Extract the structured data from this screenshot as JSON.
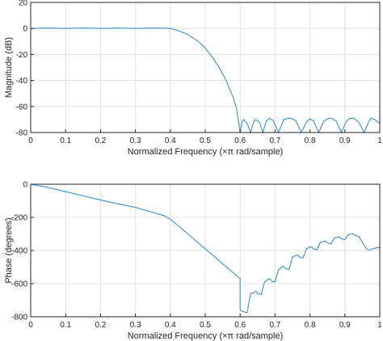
{
  "chart_data": [
    {
      "type": "line",
      "xlabel": "Normalized Frequency  (×π rad/sample)",
      "ylabel": "Magnitude (dB)",
      "xlim": [
        0,
        1
      ],
      "ylim": [
        -80,
        20
      ],
      "xticks": [
        0,
        0.1,
        0.2,
        0.3,
        0.4,
        0.5,
        0.6,
        0.7,
        0.8,
        0.9,
        1
      ],
      "xtick_labels": [
        "0",
        "0.1",
        "0.2",
        "0.3",
        "0.4",
        "0.5",
        "0.6",
        "0.7",
        "0.8",
        "0.9",
        "1"
      ],
      "yticks": [
        20,
        0,
        -20,
        -40,
        -60,
        -80
      ],
      "ytick_labels": [
        "20",
        "0",
        "-20",
        "-40",
        "-60",
        "-80"
      ],
      "grid": true,
      "series": [
        {
          "color": "#3a8fd0",
          "x": [
            0,
            0.05,
            0.1,
            0.15,
            0.2,
            0.25,
            0.3,
            0.35,
            0.38,
            0.4,
            0.42,
            0.45,
            0.48,
            0.5,
            0.52,
            0.54,
            0.56,
            0.58,
            0.59,
            0.6,
            0.605,
            0.61,
            0.62,
            0.63,
            0.64,
            0.645,
            0.655,
            0.665,
            0.675,
            0.685,
            0.695,
            0.71,
            0.725,
            0.74,
            0.745,
            0.76,
            0.775,
            0.79,
            0.8,
            0.81,
            0.825,
            0.84,
            0.855,
            0.86,
            0.875,
            0.89,
            0.905,
            0.915,
            0.925,
            0.94,
            0.955,
            0.97,
            0.975,
            0.985,
            1.0
          ],
          "y": [
            0,
            0.3,
            0,
            0.3,
            0,
            0.3,
            0,
            0.3,
            0.2,
            0,
            -1.5,
            -4.5,
            -10,
            -15,
            -22,
            -30,
            -40,
            -53,
            -62,
            -80,
            -72,
            -70,
            -73,
            -80,
            -71,
            -70,
            -72,
            -80,
            -71,
            -69,
            -71,
            -80,
            -70,
            -69,
            -69,
            -71,
            -80,
            -72,
            -69.5,
            -71,
            -80,
            -71,
            -69,
            -69,
            -71,
            -80,
            -71,
            -69,
            -69,
            -72,
            -80,
            -71,
            -69,
            -70,
            -73
          ]
        }
      ]
    },
    {
      "type": "line",
      "xlabel": "Normalized Frequency  (×π rad/sample)",
      "ylabel": "Phase (degrees)",
      "xlim": [
        0,
        1
      ],
      "ylim": [
        -800,
        0
      ],
      "xticks": [
        0,
        0.1,
        0.2,
        0.3,
        0.4,
        0.5,
        0.6,
        0.7,
        0.8,
        0.9,
        1
      ],
      "xtick_labels": [
        "0",
        "0.1",
        "0.2",
        "0.3",
        "0.4",
        "0.5",
        "0.6",
        "0.7",
        "0.8",
        "0.9",
        "1"
      ],
      "yticks": [
        0,
        -200,
        -400,
        -600,
        -800
      ],
      "ytick_labels": [
        "0",
        "-200",
        "-400",
        "-600",
        "-800"
      ],
      "grid": true,
      "series": [
        {
          "color": "#3a8fd0",
          "x": [
            0,
            0.05,
            0.1,
            0.15,
            0.2,
            0.25,
            0.3,
            0.35,
            0.38,
            0.4,
            0.45,
            0.5,
            0.55,
            0.6,
            0.6,
            0.61,
            0.62,
            0.63,
            0.64,
            0.645,
            0.65,
            0.66,
            0.67,
            0.68,
            0.685,
            0.69,
            0.7,
            0.71,
            0.72,
            0.725,
            0.73,
            0.74,
            0.75,
            0.76,
            0.765,
            0.77,
            0.78,
            0.79,
            0.8,
            0.805,
            0.81,
            0.82,
            0.83,
            0.84,
            0.845,
            0.85,
            0.86,
            0.87,
            0.88,
            0.885,
            0.89,
            0.9,
            0.91,
            0.92,
            0.925,
            0.93,
            0.94,
            0.95,
            0.96,
            0.965,
            0.97,
            0.98,
            0.99,
            1.0
          ],
          "y": [
            0,
            -20,
            -45,
            -70,
            -95,
            -118,
            -140,
            -170,
            -188,
            -210,
            -300,
            -390,
            -480,
            -570,
            -760,
            -770,
            -775,
            -660,
            -655,
            -645,
            -660,
            -665,
            -590,
            -575,
            -570,
            -585,
            -590,
            -515,
            -500,
            -495,
            -510,
            -515,
            -440,
            -430,
            -428,
            -440,
            -445,
            -390,
            -380,
            -378,
            -390,
            -395,
            -350,
            -345,
            -343,
            -355,
            -360,
            -325,
            -320,
            -318,
            -330,
            -335,
            -305,
            -300,
            -300,
            -310,
            -315,
            -350,
            -385,
            -395,
            -398,
            -390,
            -385,
            -380
          ]
        }
      ]
    }
  ]
}
